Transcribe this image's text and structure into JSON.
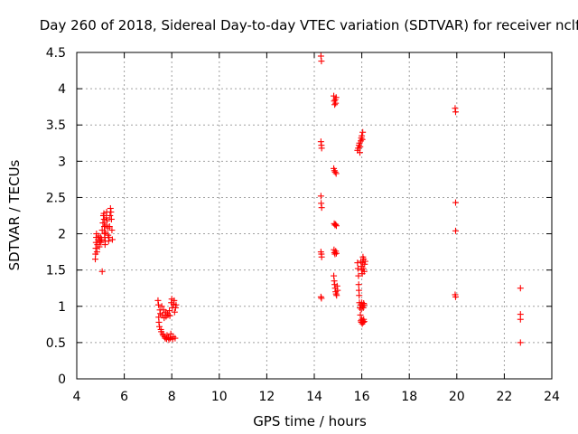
{
  "chart_data": {
    "type": "scatter",
    "title": "Day 260 of 2018, Sidereal Day-to-day VTEC variation (SDTVAR) for receiver nclf",
    "xlabel": "GPS time / hours",
    "ylabel": "SDTVAR / TECUs",
    "xlim": [
      4,
      24
    ],
    "ylim": [
      0,
      4.5
    ],
    "xticks": [
      4,
      6,
      8,
      10,
      12,
      14,
      16,
      18,
      20,
      22,
      24
    ],
    "yticks": [
      0,
      0.5,
      1,
      1.5,
      2,
      2.5,
      3,
      3.5,
      4,
      4.5
    ],
    "xtick_labels": [
      "4",
      "6",
      "8",
      "10",
      "12",
      "14",
      "16",
      "18",
      "20",
      "22",
      "24"
    ],
    "ytick_labels": [
      "0",
      "0.5",
      "1",
      "1.5",
      "2",
      "2.5",
      "3",
      "3.5",
      "4",
      "4.5"
    ],
    "grid": true,
    "marker": "+",
    "color": "#ff0000",
    "series": [
      {
        "name": "SDTVAR",
        "points": [
          [
            4.78,
            1.65
          ],
          [
            4.79,
            1.72
          ],
          [
            4.8,
            1.8
          ],
          [
            4.81,
            1.88
          ],
          [
            4.82,
            1.95
          ],
          [
            4.83,
            2.0
          ],
          [
            4.85,
            1.75
          ],
          [
            4.87,
            1.85
          ],
          [
            4.9,
            1.92
          ],
          [
            4.92,
            1.97
          ],
          [
            4.95,
            1.82
          ],
          [
            4.97,
            1.9
          ],
          [
            5.0,
            1.95
          ],
          [
            5.02,
            1.88
          ],
          [
            5.05,
            1.92
          ],
          [
            5.07,
            2.05
          ],
          [
            5.1,
            2.15
          ],
          [
            5.12,
            2.25
          ],
          [
            5.14,
            2.28
          ],
          [
            5.15,
            2.2
          ],
          [
            5.16,
            2.1
          ],
          [
            5.17,
            2.0
          ],
          [
            5.18,
            1.95
          ],
          [
            5.19,
            1.85
          ],
          [
            5.2,
            1.9
          ],
          [
            5.21,
            2.02
          ],
          [
            5.22,
            2.12
          ],
          [
            5.24,
            2.22
          ],
          [
            5.26,
            2.3
          ],
          [
            5.28,
            2.18
          ],
          [
            5.3,
            2.08
          ],
          [
            5.32,
            1.98
          ],
          [
            5.34,
            1.9
          ],
          [
            5.36,
            1.95
          ],
          [
            5.38,
            2.1
          ],
          [
            5.4,
            2.25
          ],
          [
            5.42,
            2.35
          ],
          [
            5.44,
            2.3
          ],
          [
            5.46,
            2.2
          ],
          [
            5.48,
            2.05
          ],
          [
            5.5,
            1.92
          ],
          [
            5.07,
            1.48
          ],
          [
            7.42,
            1.08
          ],
          [
            7.44,
            1.02
          ],
          [
            7.45,
            0.85
          ],
          [
            7.46,
            0.78
          ],
          [
            7.48,
            0.72
          ],
          [
            7.5,
            0.95
          ],
          [
            7.52,
            0.9
          ],
          [
            7.54,
            0.68
          ],
          [
            7.56,
            0.65
          ],
          [
            7.58,
            1.0
          ],
          [
            7.6,
            0.88
          ],
          [
            7.62,
            0.62
          ],
          [
            7.64,
            0.6
          ],
          [
            7.66,
            0.95
          ],
          [
            7.68,
            0.84
          ],
          [
            7.7,
            0.58
          ],
          [
            7.72,
            0.56
          ],
          [
            7.74,
            0.92
          ],
          [
            7.76,
            0.86
          ],
          [
            7.78,
            0.55
          ],
          [
            7.8,
            0.6
          ],
          [
            7.82,
            0.9
          ],
          [
            7.84,
            0.88
          ],
          [
            7.86,
            0.57
          ],
          [
            7.88,
            0.54
          ],
          [
            7.9,
            0.94
          ],
          [
            7.92,
            0.87
          ],
          [
            7.94,
            0.56
          ],
          [
            7.96,
            0.62
          ],
          [
            7.98,
            1.05
          ],
          [
            8.0,
            1.1
          ],
          [
            8.02,
            0.98
          ],
          [
            8.04,
            0.55
          ],
          [
            8.06,
            0.58
          ],
          [
            8.08,
            1.03
          ],
          [
            8.1,
            1.08
          ],
          [
            8.12,
            0.92
          ],
          [
            8.14,
            0.56
          ],
          [
            8.16,
            0.98
          ],
          [
            8.18,
            1.02
          ],
          [
            14.28,
            4.45
          ],
          [
            14.3,
            4.38
          ],
          [
            14.28,
            3.27
          ],
          [
            14.3,
            3.22
          ],
          [
            14.31,
            3.18
          ],
          [
            14.28,
            2.52
          ],
          [
            14.29,
            2.42
          ],
          [
            14.31,
            2.36
          ],
          [
            14.28,
            1.75
          ],
          [
            14.3,
            1.72
          ],
          [
            14.31,
            1.68
          ],
          [
            14.28,
            1.13
          ],
          [
            14.3,
            1.11
          ],
          [
            14.82,
            3.9
          ],
          [
            14.84,
            3.83
          ],
          [
            14.86,
            3.78
          ],
          [
            14.88,
            3.85
          ],
          [
            14.9,
            3.8
          ],
          [
            14.92,
            3.88
          ],
          [
            14.82,
            2.9
          ],
          [
            14.85,
            2.87
          ],
          [
            14.88,
            2.85
          ],
          [
            14.92,
            2.83
          ],
          [
            14.84,
            2.14
          ],
          [
            14.87,
            2.12
          ],
          [
            14.9,
            2.13
          ],
          [
            14.93,
            2.11
          ],
          [
            14.83,
            1.78
          ],
          [
            14.85,
            1.74
          ],
          [
            14.87,
            1.72
          ],
          [
            14.9,
            1.76
          ],
          [
            14.93,
            1.73
          ],
          [
            14.82,
            1.42
          ],
          [
            14.84,
            1.35
          ],
          [
            14.86,
            1.3
          ],
          [
            14.88,
            1.25
          ],
          [
            14.9,
            1.2
          ],
          [
            14.92,
            1.17
          ],
          [
            14.94,
            1.15
          ],
          [
            14.96,
            1.28
          ],
          [
            14.98,
            1.22
          ],
          [
            15.82,
            3.15
          ],
          [
            15.85,
            3.18
          ],
          [
            15.88,
            3.22
          ],
          [
            15.9,
            3.25
          ],
          [
            15.93,
            3.2
          ],
          [
            15.96,
            3.28
          ],
          [
            15.98,
            3.32
          ],
          [
            16.0,
            3.35
          ],
          [
            16.02,
            3.3
          ],
          [
            16.04,
            3.4
          ],
          [
            15.92,
            3.12
          ],
          [
            15.82,
            1.6
          ],
          [
            15.84,
            1.52
          ],
          [
            15.86,
            1.42
          ],
          [
            15.87,
            1.3
          ],
          [
            15.88,
            1.22
          ],
          [
            15.89,
            1.15
          ],
          [
            15.9,
            1.05
          ],
          [
            15.92,
            0.98
          ],
          [
            15.94,
            0.88
          ],
          [
            15.96,
            0.8
          ],
          [
            15.98,
            0.78
          ],
          [
            16.0,
            0.82
          ],
          [
            16.02,
            0.76
          ],
          [
            16.04,
            0.8
          ],
          [
            16.06,
            0.78
          ],
          [
            16.08,
            0.82
          ],
          [
            16.1,
            0.79
          ],
          [
            15.95,
            1.02
          ],
          [
            15.98,
            0.96
          ],
          [
            16.0,
            1.05
          ],
          [
            16.03,
            1.0
          ],
          [
            16.06,
            0.98
          ],
          [
            16.08,
            1.04
          ],
          [
            16.1,
            1.02
          ],
          [
            15.96,
            1.62
          ],
          [
            15.98,
            1.55
          ],
          [
            16.0,
            1.5
          ],
          [
            16.02,
            1.45
          ],
          [
            16.04,
            1.6
          ],
          [
            16.06,
            1.52
          ],
          [
            16.08,
            1.65
          ],
          [
            16.1,
            1.48
          ],
          [
            16.12,
            1.58
          ],
          [
            16.14,
            1.62
          ],
          [
            16.05,
            1.68
          ],
          [
            19.93,
            3.73
          ],
          [
            19.95,
            3.68
          ],
          [
            19.95,
            2.43
          ],
          [
            19.95,
            2.04
          ],
          [
            19.93,
            1.16
          ],
          [
            19.95,
            1.13
          ],
          [
            22.68,
            1.25
          ],
          [
            22.68,
            0.89
          ],
          [
            22.68,
            0.82
          ],
          [
            22.68,
            0.5
          ]
        ]
      }
    ]
  }
}
